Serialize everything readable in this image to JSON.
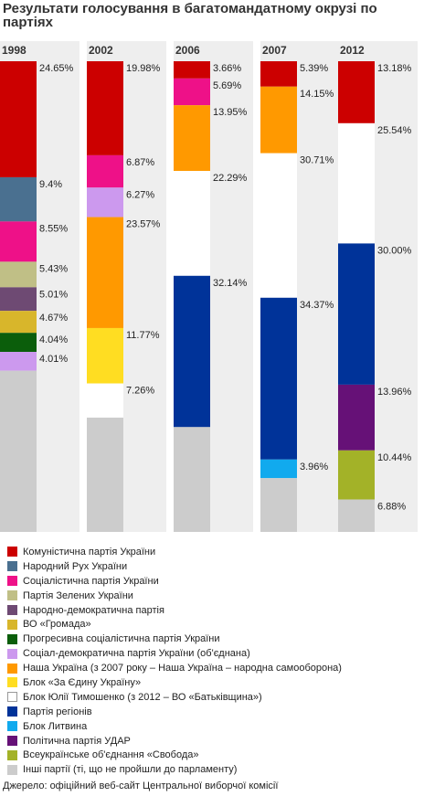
{
  "title": "Результати голосування в багатомандатному окрузі по партіях",
  "source": "Джерело: офіційний веб-сайт Центральної виборчої комісії",
  "chart_data": {
    "type": "bar",
    "stacked": true,
    "normalized_percent": true,
    "legend_position": "bottom",
    "categories": [
      "1998",
      "2002",
      "2006",
      "2007",
      "2012"
    ],
    "series": [
      {
        "key": "kpu",
        "name": "Комуністична партія України",
        "color": "#cc0000",
        "values": [
          24.65,
          19.98,
          3.66,
          5.39,
          13.18
        ],
        "labels": [
          "24.65%",
          "19.98%",
          "3.66%",
          "5.39%",
          "13.18%"
        ]
      },
      {
        "key": "rukh",
        "name": "Народний Рух України",
        "color": "#4a7090",
        "values": [
          9.4,
          null,
          null,
          null,
          null
        ],
        "labels": [
          "9.4%",
          "",
          "",
          "",
          ""
        ]
      },
      {
        "key": "sotsialisty",
        "name": "Соціалістична партія України",
        "color": "#ee1188",
        "values": [
          8.55,
          6.87,
          5.69,
          null,
          null
        ],
        "labels": [
          "8.55%",
          "6.87%",
          "5.69%",
          "",
          ""
        ]
      },
      {
        "key": "zeleni",
        "name": "Партія Зелених України",
        "color": "#c0bf86",
        "values": [
          5.43,
          null,
          null,
          null,
          null
        ],
        "labels": [
          "5.43%",
          "",
          "",
          "",
          ""
        ]
      },
      {
        "key": "ndp",
        "name": "Народно-демократична партія",
        "color": "#6e4a73",
        "values": [
          5.01,
          null,
          null,
          null,
          null
        ],
        "labels": [
          "5.01%",
          "",
          "",
          "",
          ""
        ]
      },
      {
        "key": "hromada",
        "name": "ВО «Громада»",
        "color": "#d8b62b",
        "values": [
          4.67,
          null,
          null,
          null,
          null
        ],
        "labels": [
          "4.67%",
          "",
          "",
          "",
          ""
        ]
      },
      {
        "key": "pspu",
        "name": "Прогресивна соціалістична партія України",
        "color": "#0b5e0b",
        "values": [
          4.04,
          null,
          null,
          null,
          null
        ],
        "labels": [
          "4.04%",
          "",
          "",
          "",
          ""
        ]
      },
      {
        "key": "sdpuo",
        "name": "Соціал-демократична партія України (об'єднана)",
        "color": "#cc99ee",
        "values": [
          4.01,
          6.27,
          null,
          null,
          null
        ],
        "labels": [
          "4.01%",
          "6.27%",
          "",
          "",
          ""
        ]
      },
      {
        "key": "nu",
        "name": "Наша Україна (з 2007 року – Наша Україна – народна самооборона)",
        "color": "#ff9900",
        "values": [
          null,
          23.57,
          13.95,
          14.15,
          null
        ],
        "labels": [
          "",
          "23.57%",
          "13.95%",
          "14.15%",
          ""
        ]
      },
      {
        "key": "zaedu",
        "name": "Блок «За Єдину Україну»",
        "color": "#ffdd22",
        "values": [
          null,
          11.77,
          null,
          null,
          null
        ],
        "labels": [
          "",
          "11.77%",
          "",
          "",
          ""
        ]
      },
      {
        "key": "byut",
        "name": "Блок Юлії Тимошенко (з 2012 – ВО «Батьківщина»)",
        "color": "#ffffff",
        "values": [
          null,
          7.26,
          22.29,
          30.71,
          25.54
        ],
        "labels": [
          "",
          "7.26%",
          "22.29%",
          "30.71%",
          "25.54%"
        ]
      },
      {
        "key": "pr",
        "name": "Партія регіонів",
        "color": "#003399",
        "values": [
          null,
          null,
          32.14,
          34.37,
          30.0
        ],
        "labels": [
          "",
          "",
          "32.14%",
          "34.37%",
          "30.00%"
        ]
      },
      {
        "key": "lytvyn",
        "name": "Блок Литвина",
        "color": "#11aaee",
        "values": [
          null,
          null,
          null,
          3.96,
          null
        ],
        "labels": [
          "",
          "",
          "",
          "3.96%",
          ""
        ]
      },
      {
        "key": "udar",
        "name": "Політична партія УДАР",
        "color": "#661177",
        "values": [
          null,
          null,
          null,
          null,
          13.96
        ],
        "labels": [
          "",
          "",
          "",
          "",
          "13.96%"
        ]
      },
      {
        "key": "svoboda",
        "name": "Всеукраїнське об'єднання «Свобода»",
        "color": "#a3b228",
        "values": [
          null,
          null,
          null,
          null,
          10.44
        ],
        "labels": [
          "",
          "",
          "",
          "",
          "10.44%"
        ]
      },
      {
        "key": "inshi",
        "name": "Інші партії (ті, що не пройшли до парламенту)",
        "color": "#cccccc",
        "values": [
          34.24,
          24.28,
          22.27,
          11.42,
          6.88
        ],
        "labels": [
          "",
          "",
          "",
          "",
          "6.88%"
        ]
      }
    ]
  }
}
